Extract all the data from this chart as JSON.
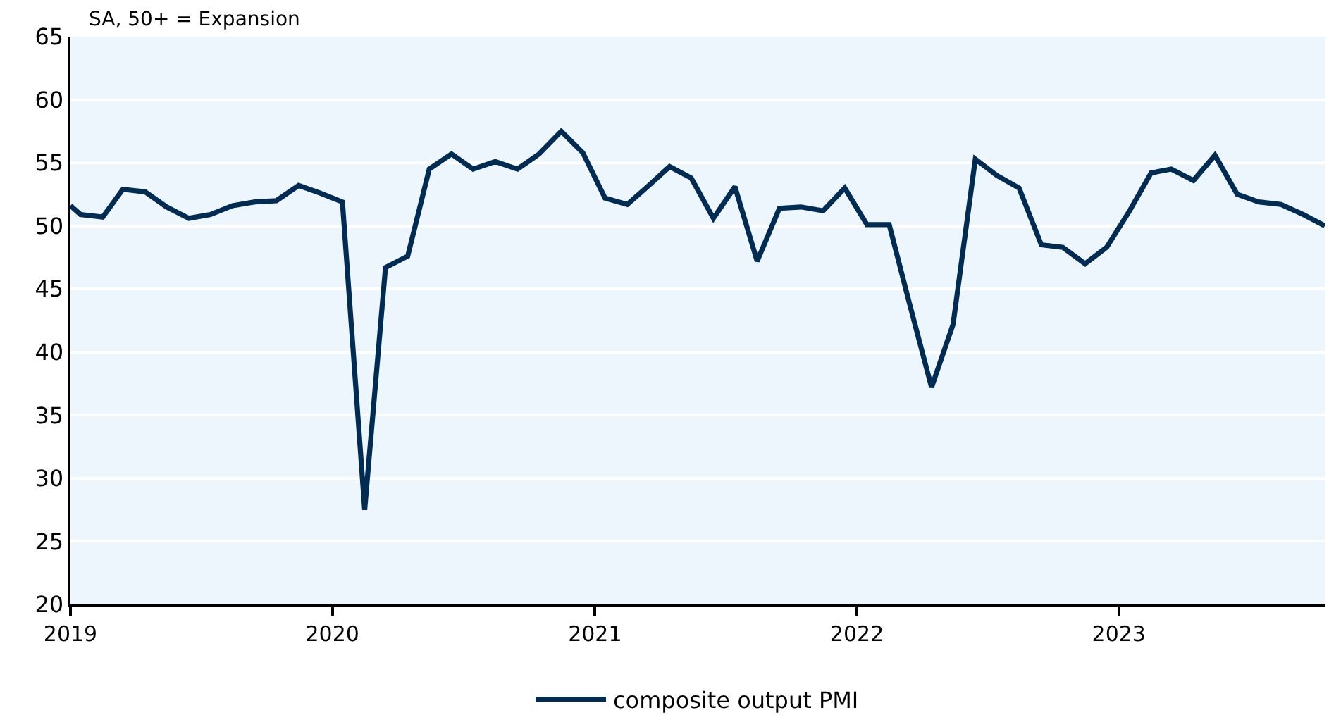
{
  "chart_data": {
    "type": "line",
    "subtitle": "SA, 50+ = Expansion",
    "x": [
      "2019-01-01",
      "2019-01-15",
      "2019-02-15",
      "2019-03-15",
      "2019-04-15",
      "2019-05-15",
      "2019-06-15",
      "2019-07-15",
      "2019-08-15",
      "2019-09-15",
      "2019-10-15",
      "2019-11-15",
      "2019-12-15",
      "2020-01-15",
      "2020-02-15",
      "2020-03-15",
      "2020-04-15",
      "2020-05-15",
      "2020-06-15",
      "2020-07-15",
      "2020-08-15",
      "2020-09-15",
      "2020-10-15",
      "2020-11-15",
      "2020-12-15",
      "2021-01-15",
      "2021-02-15",
      "2021-03-15",
      "2021-04-15",
      "2021-05-15",
      "2021-06-15",
      "2021-07-15",
      "2021-08-15",
      "2021-09-15",
      "2021-10-15",
      "2021-11-15",
      "2021-12-15",
      "2022-01-15",
      "2022-02-15",
      "2022-03-15",
      "2022-04-15",
      "2022-05-15",
      "2022-06-15",
      "2022-07-15",
      "2022-08-15",
      "2022-09-15",
      "2022-10-15",
      "2022-11-15",
      "2022-12-15",
      "2023-01-15",
      "2023-02-15",
      "2023-03-15",
      "2023-04-15",
      "2023-05-15",
      "2023-06-15",
      "2023-07-15",
      "2023-08-15",
      "2023-09-15",
      "2023-10-15"
    ],
    "series": [
      {
        "name": "composite output PMI",
        "color": "#002b53",
        "values": [
          51.6,
          50.9,
          50.7,
          52.9,
          52.7,
          51.5,
          50.6,
          50.9,
          51.6,
          51.9,
          52.0,
          53.2,
          52.6,
          51.9,
          27.5,
          46.7,
          47.6,
          54.5,
          55.7,
          54.5,
          55.1,
          54.5,
          55.7,
          57.5,
          55.8,
          52.2,
          51.7,
          53.1,
          54.7,
          53.8,
          50.6,
          53.1,
          47.2,
          51.4,
          51.5,
          51.2,
          53.0,
          50.1,
          50.1,
          43.9,
          37.2,
          42.2,
          55.3,
          54.0,
          53.0,
          48.5,
          48.3,
          47.0,
          48.3,
          51.1,
          54.2,
          54.5,
          53.6,
          55.6,
          52.5,
          51.9,
          51.7,
          50.9,
          50.0
        ]
      }
    ],
    "xlim": [
      "2019-01-01",
      "2023-10-15"
    ],
    "xticks": [
      "2019",
      "2020",
      "2021",
      "2022",
      "2023"
    ],
    "ylim": [
      20,
      65
    ],
    "yticks": [
      20,
      25,
      30,
      35,
      40,
      45,
      50,
      55,
      60,
      65
    ],
    "grid": "y",
    "legend": "bottom",
    "line_style": "solid"
  }
}
